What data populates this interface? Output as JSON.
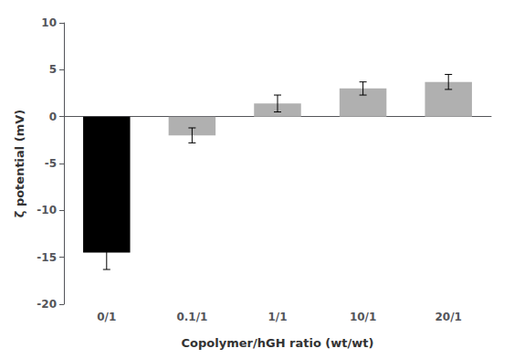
{
  "chart_data": {
    "type": "bar",
    "categories": [
      "0/1",
      "0.1/1",
      "1/1",
      "10/1",
      "20/1"
    ],
    "values": [
      -14.5,
      -2.0,
      1.4,
      3.0,
      3.7
    ],
    "errors": [
      1.8,
      0.8,
      0.9,
      0.7,
      0.8
    ],
    "colors": [
      "#000000",
      "#b0b0b0",
      "#b0b0b0",
      "#b0b0b0",
      "#b0b0b0"
    ],
    "xlabel": "Copolymer/hGH ratio (wt/wt)",
    "ylabel": "ζ potential (mV)",
    "ylim": [
      -20,
      10
    ],
    "yticks": [
      -20,
      -15,
      -10,
      -5,
      0,
      5,
      10
    ],
    "grid": false
  }
}
